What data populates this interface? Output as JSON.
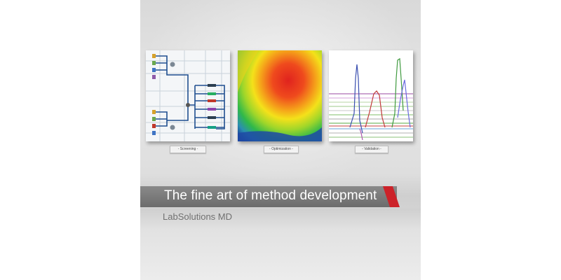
{
  "panels": {
    "screening": {
      "caption": "- Screening -"
    },
    "optimization": {
      "caption": "- Optimization -"
    },
    "validation": {
      "caption": "- Validation -"
    }
  },
  "banner": {
    "headline": "The fine art of method development",
    "product": "LabSolutions MD",
    "accent_color": "#cc2229"
  },
  "icons": {
    "screening": "flow-schematic-icon",
    "optimization": "heatmap-icon",
    "validation": "chromatogram-icon"
  }
}
